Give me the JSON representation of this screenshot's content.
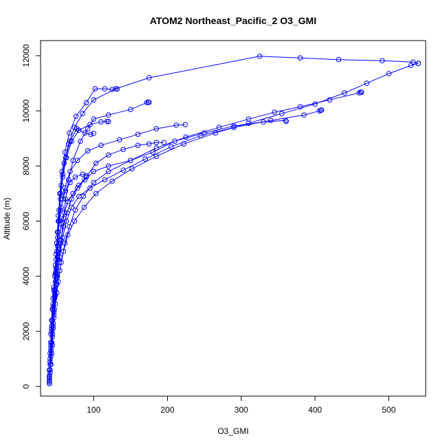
{
  "chart_data": {
    "type": "line",
    "title": "ATOM2 Northeast_Pacific_2 O3_GMI",
    "xlabel": "O3_GMI",
    "ylabel": "Altitude (m)",
    "xlim": [
      28,
      550
    ],
    "ylim": [
      -350,
      12550
    ],
    "xticks": [
      100,
      200,
      300,
      400,
      500
    ],
    "yticks": [
      0,
      2000,
      4000,
      6000,
      8000,
      10000,
      12000
    ],
    "series_color": "#0000ff",
    "marker": "open-circle",
    "series": [
      {
        "points": [
          [
            40,
            100
          ],
          [
            40,
            200
          ],
          [
            40,
            350
          ],
          [
            40,
            600
          ],
          [
            41,
            900
          ],
          [
            41,
            1200
          ],
          [
            42,
            1600
          ],
          [
            43,
            2000
          ],
          [
            43,
            2400
          ],
          [
            44,
            2800
          ],
          [
            45,
            3200
          ],
          [
            46,
            3600
          ],
          [
            47,
            4000
          ],
          [
            48,
            4400
          ],
          [
            49,
            4800
          ],
          [
            50,
            5200
          ],
          [
            51,
            5600
          ],
          [
            53,
            6000
          ],
          [
            55,
            6400
          ],
          [
            58,
            6800
          ],
          [
            62,
            7100
          ],
          [
            68,
            7400
          ],
          [
            75,
            7600
          ],
          [
            85,
            7700
          ],
          [
            90,
            7650
          ]
        ]
      },
      {
        "points": [
          [
            40,
            150
          ],
          [
            41,
            500
          ],
          [
            41,
            1000
          ],
          [
            42,
            1500
          ],
          [
            43,
            2200
          ],
          [
            45,
            2900
          ],
          [
            47,
            3500
          ],
          [
            49,
            4100
          ],
          [
            51,
            4700
          ],
          [
            53,
            5300
          ],
          [
            56,
            5900
          ],
          [
            60,
            6300
          ],
          [
            65,
            6700
          ],
          [
            72,
            7000
          ],
          [
            80,
            7300
          ],
          [
            90,
            7600
          ],
          [
            103,
            8100
          ],
          [
            120,
            8400
          ],
          [
            140,
            8600
          ],
          [
            160,
            8750
          ],
          [
            175,
            8800
          ],
          [
            185,
            8850
          ],
          [
            195,
            8850
          ]
        ]
      },
      {
        "points": [
          [
            40,
            200
          ],
          [
            41,
            800
          ],
          [
            42,
            1400
          ],
          [
            43,
            2100
          ],
          [
            45,
            2800
          ],
          [
            47,
            3400
          ],
          [
            49,
            4000
          ],
          [
            52,
            4600
          ],
          [
            55,
            5200
          ],
          [
            59,
            5800
          ],
          [
            64,
            6300
          ],
          [
            70,
            6800
          ],
          [
            78,
            7200
          ],
          [
            88,
            7500
          ],
          [
            100,
            7800
          ],
          [
            120,
            8000
          ],
          [
            150,
            8200
          ],
          [
            180,
            8500
          ],
          [
            210,
            8900
          ],
          [
            250,
            9200
          ],
          [
            290,
            9450
          ],
          [
            330,
            9600
          ],
          [
            360,
            9650
          ],
          [
            361,
            9620
          ]
        ]
      },
      {
        "points": [
          [
            40,
            300
          ],
          [
            42,
            1100
          ],
          [
            44,
            1900
          ],
          [
            46,
            2600
          ],
          [
            48,
            3300
          ],
          [
            51,
            4000
          ],
          [
            54,
            4700
          ],
          [
            58,
            5400
          ],
          [
            63,
            6000
          ],
          [
            70,
            6500
          ],
          [
            80,
            6900
          ],
          [
            95,
            7200
          ],
          [
            115,
            7500
          ],
          [
            140,
            7850
          ],
          [
            170,
            8250
          ],
          [
            205,
            8700
          ],
          [
            245,
            9100
          ],
          [
            290,
            9400
          ],
          [
            340,
            9650
          ],
          [
            385,
            9850
          ],
          [
            406,
            10000
          ],
          [
            408,
            10020
          ],
          [
            409,
            10030
          ]
        ]
      },
      {
        "points": [
          [
            40,
            400
          ],
          [
            42,
            1300
          ],
          [
            45,
            2200
          ],
          [
            48,
            3000
          ],
          [
            52,
            3800
          ],
          [
            56,
            4500
          ],
          [
            61,
            5200
          ],
          [
            67,
            5800
          ],
          [
            75,
            6400
          ],
          [
            86,
            6900
          ],
          [
            100,
            7400
          ],
          [
            120,
            7800
          ],
          [
            150,
            8200
          ],
          [
            185,
            8650
          ],
          [
            225,
            9050
          ],
          [
            270,
            9400
          ],
          [
            310,
            9700
          ],
          [
            345,
            9950
          ],
          [
            380,
            10150
          ],
          [
            420,
            10400
          ],
          [
            460,
            10650
          ],
          [
            462,
            10680
          ],
          [
            463,
            10670
          ]
        ]
      },
      {
        "points": [
          [
            41,
            600
          ],
          [
            43,
            1600
          ],
          [
            46,
            2500
          ],
          [
            50,
            3400
          ],
          [
            54,
            4200
          ],
          [
            59,
            4900
          ],
          [
            65,
            5500
          ],
          [
            74,
            6000
          ],
          [
            87,
            6500
          ],
          [
            103,
            7000
          ],
          [
            125,
            7450
          ],
          [
            152,
            7900
          ],
          [
            185,
            8350
          ],
          [
            222,
            8800
          ],
          [
            265,
            9200
          ],
          [
            310,
            9550
          ],
          [
            355,
            9900
          ],
          [
            400,
            10250
          ],
          [
            440,
            10650
          ],
          [
            470,
            11000
          ],
          [
            500,
            11350
          ],
          [
            530,
            11650
          ],
          [
            540,
            11720
          ]
        ]
      },
      {
        "points": [
          [
            42,
            800
          ],
          [
            44,
            1800
          ],
          [
            47,
            2800
          ],
          [
            50,
            3700
          ],
          [
            53,
            4500
          ],
          [
            56,
            5300
          ],
          [
            59,
            6100
          ],
          [
            62,
            6800
          ],
          [
            66,
            7500
          ],
          [
            72,
            8200
          ],
          [
            82,
            8900
          ],
          [
            92,
            9350
          ],
          [
            100,
            9700
          ],
          [
            120,
            9850
          ],
          [
            150,
            10050
          ],
          [
            172,
            10300
          ],
          [
            174,
            10320
          ],
          [
            175,
            10310
          ]
        ]
      },
      {
        "points": [
          [
            43,
            1200
          ],
          [
            45,
            2300
          ],
          [
            47,
            3300
          ],
          [
            49,
            4200
          ],
          [
            51,
            5100
          ],
          [
            53,
            6000
          ],
          [
            55,
            6800
          ],
          [
            58,
            7600
          ],
          [
            63,
            8300
          ],
          [
            70,
            8900
          ],
          [
            80,
            9300
          ],
          [
            95,
            9500
          ],
          [
            110,
            9600
          ],
          [
            118,
            9620
          ],
          [
            120,
            9610
          ]
        ]
      },
      {
        "points": [
          [
            44,
            1500
          ],
          [
            46,
            2700
          ],
          [
            48,
            3800
          ],
          [
            50,
            4900
          ],
          [
            52,
            6000
          ],
          [
            54,
            7000
          ],
          [
            57,
            7800
          ],
          [
            61,
            8500
          ],
          [
            67,
            9200
          ],
          [
            76,
            9800
          ],
          [
            90,
            10300
          ],
          [
            102,
            10800
          ],
          [
            115,
            10800
          ],
          [
            125,
            10780
          ],
          [
            132,
            10790
          ]
        ]
      },
      {
        "points": [
          [
            45,
            2100
          ],
          [
            47,
            3200
          ],
          [
            49,
            4300
          ],
          [
            51,
            5400
          ],
          [
            53,
            6400
          ],
          [
            56,
            7300
          ],
          [
            60,
            8100
          ],
          [
            66,
            8800
          ],
          [
            74,
            9400
          ],
          [
            85,
            9900
          ],
          [
            100,
            10400
          ],
          [
            130,
            10800
          ],
          [
            175,
            11200
          ],
          [
            325,
            11980
          ],
          [
            380,
            11920
          ],
          [
            432,
            11860
          ],
          [
            491,
            11820
          ],
          [
            533,
            11770
          ],
          [
            540,
            11720
          ]
        ]
      },
      {
        "points": [
          [
            42,
            1900
          ],
          [
            45,
            3000
          ],
          [
            48,
            4100
          ],
          [
            50,
            5200
          ],
          [
            52,
            6200
          ],
          [
            55,
            7000
          ],
          [
            58,
            7700
          ],
          [
            62,
            8300
          ],
          [
            68,
            8900
          ],
          [
            77,
            9350
          ],
          [
            88,
            9200
          ],
          [
            96,
            9150
          ],
          [
            100,
            9180
          ]
        ]
      },
      {
        "points": [
          [
            44,
            2400
          ],
          [
            46,
            3500
          ],
          [
            49,
            4600
          ],
          [
            52,
            5600
          ],
          [
            56,
            6500
          ],
          [
            61,
            7200
          ],
          [
            68,
            7800
          ],
          [
            78,
            8200
          ],
          [
            92,
            8550
          ],
          [
            110,
            8750
          ],
          [
            135,
            8950
          ],
          [
            160,
            9150
          ],
          [
            185,
            9350
          ],
          [
            212,
            9480
          ],
          [
            224,
            9500
          ]
        ]
      }
    ]
  }
}
